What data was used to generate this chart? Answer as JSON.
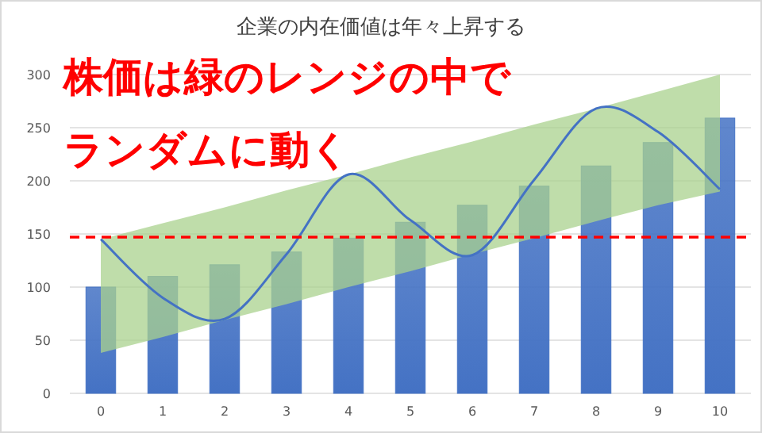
{
  "chart_data": {
    "type": "bar",
    "title": "企業の内在価値は年々上昇する",
    "annotations": [
      "株価は緑のレンジの中で",
      "ランダムに動く"
    ],
    "categories": [
      "0",
      "1",
      "2",
      "3",
      "4",
      "5",
      "6",
      "7",
      "8",
      "9",
      "10"
    ],
    "series": [
      {
        "color": "#4472c4",
        "values": [
          100,
          110,
          121,
          133,
          146,
          161,
          177,
          195,
          214,
          236,
          259
        ]
      },
      {
        "type": "line",
        "color": "#4472c4",
        "values": [
          145,
          90,
          70,
          131,
          206,
          163,
          130,
          201,
          268,
          246,
          192
        ],
        "lower": [
          38,
          53,
          69,
          84,
          100,
          115,
          131,
          146,
          162,
          177,
          190
        ],
        "upper": [
          145,
          160,
          175,
          191,
          206,
          222,
          237,
          253,
          268,
          284,
          300
        ]
      }
    ],
    "ylim": [
      0,
      300
    ],
    "yticks": [
      0,
      50,
      100,
      150,
      200,
      250,
      300
    ],
    "grid": "y",
    "ref_lines": [
      {
        "axis": "y",
        "value": 147,
        "color": "#ff0000",
        "line_style": "dashed"
      }
    ]
  }
}
